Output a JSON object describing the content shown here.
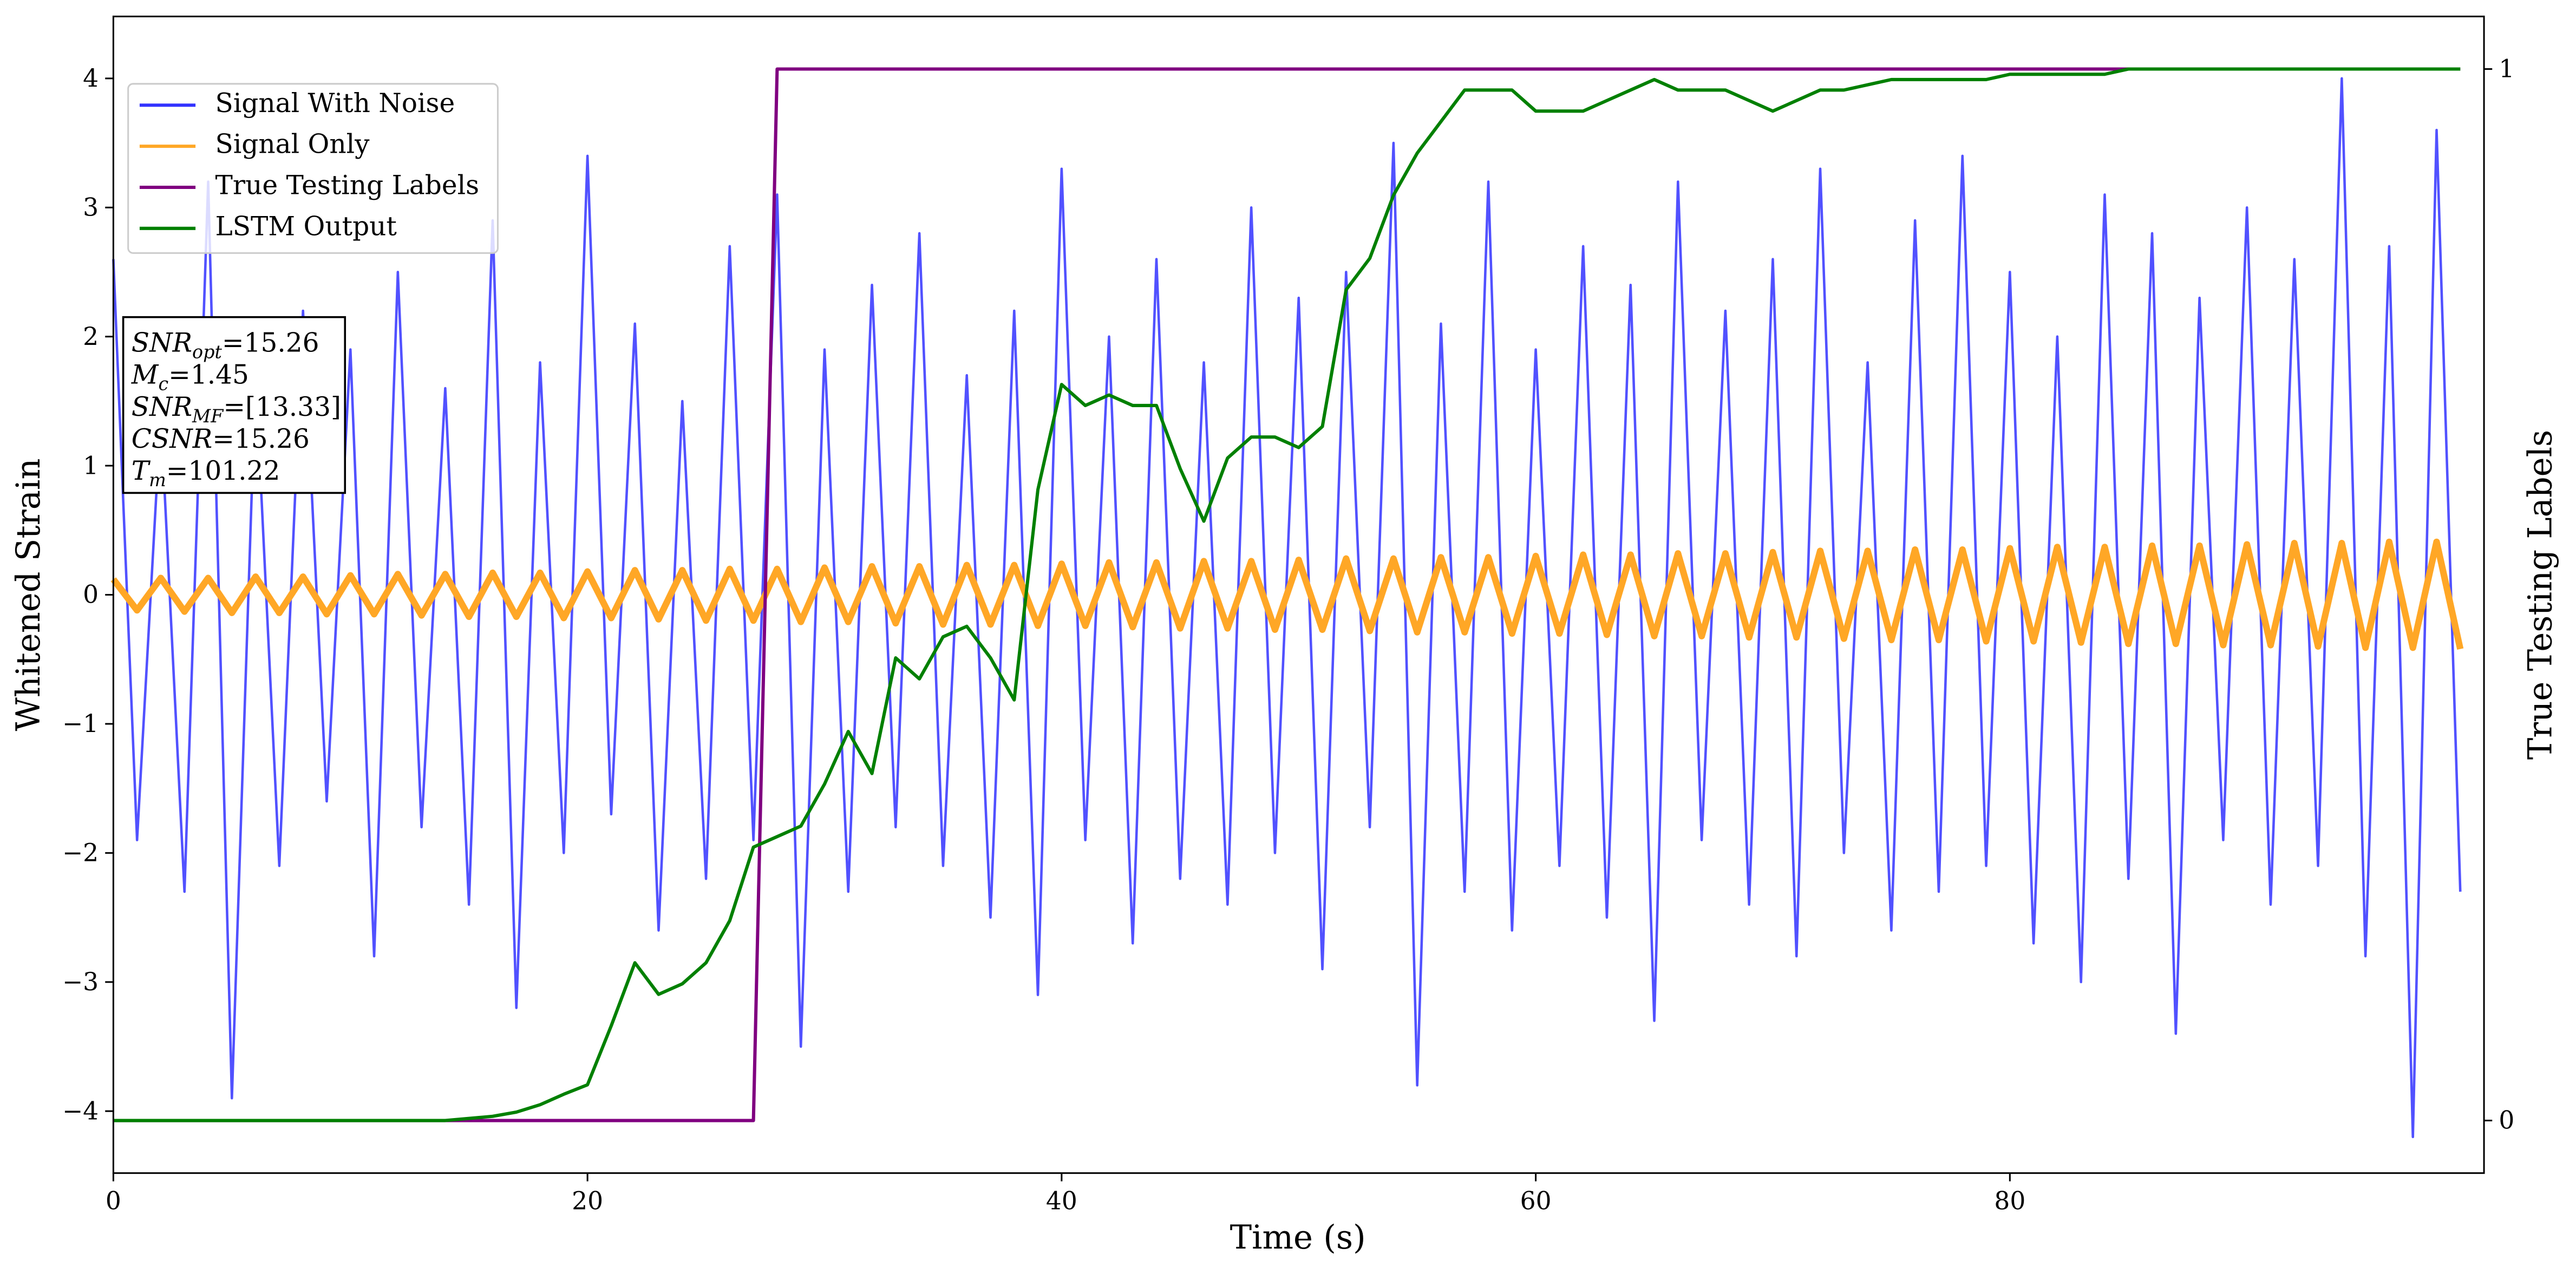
{
  "chart_data": {
    "type": "line",
    "xlabel": "Time (s)",
    "ylabel": "Whitened Strain",
    "y2label": "True Testing Labels",
    "xlim": [
      0,
      100
    ],
    "ylim": [
      -4.48,
      4.48
    ],
    "y2lim": [
      -0.05,
      1.05
    ],
    "xticks": [
      0,
      20,
      40,
      60,
      80
    ],
    "yticks": [
      {
        "value": -4,
        "label": "−4"
      },
      {
        "value": -3,
        "label": "−3"
      },
      {
        "value": -2,
        "label": "−2"
      },
      {
        "value": -1,
        "label": "−1"
      },
      0,
      1,
      2,
      3,
      4
    ],
    "y2ticks": [
      0,
      1
    ],
    "legend": "upper left",
    "x": [
      0,
      1,
      2,
      3,
      4,
      5,
      6,
      7,
      8,
      9,
      10,
      11,
      12,
      13,
      14,
      15,
      16,
      17,
      18,
      19,
      20,
      21,
      22,
      23,
      24,
      25,
      26,
      27,
      28,
      29,
      30,
      31,
      32,
      33,
      34,
      35,
      36,
      37,
      38,
      39,
      40,
      41,
      42,
      43,
      44,
      45,
      46,
      47,
      48,
      49,
      50,
      51,
      52,
      53,
      54,
      55,
      56,
      57,
      58,
      59,
      60,
      61,
      62,
      63,
      64,
      65,
      66,
      67,
      68,
      69,
      70,
      71,
      72,
      73,
      74,
      75,
      76,
      77,
      78,
      79,
      80,
      81,
      82,
      83,
      84,
      85,
      86,
      87,
      88,
      89,
      90,
      91,
      92,
      93,
      94,
      95,
      96,
      97,
      98,
      99
    ],
    "series": [
      {
        "name": "Signal With Noise",
        "color": "#3333ff",
        "values": [
          2.6,
          -1.9,
          1.4,
          -2.3,
          3.2,
          -3.9,
          1.7,
          -2.1,
          2.2,
          -1.6,
          1.9,
          -2.8,
          2.5,
          -1.8,
          1.6,
          -2.4,
          2.9,
          -3.2,
          1.8,
          -2.0,
          3.4,
          -1.7,
          2.1,
          -2.6,
          1.5,
          -2.2,
          2.7,
          -1.9,
          3.1,
          -3.5,
          1.9,
          -2.3,
          2.4,
          -1.8,
          2.8,
          -2.1,
          1.7,
          -2.5,
          2.2,
          -3.1,
          3.3,
          -1.9,
          2.0,
          -2.7,
          2.6,
          -2.2,
          1.8,
          -2.4,
          3.0,
          -2.0,
          2.3,
          -2.9,
          2.5,
          -1.8,
          3.5,
          -3.8,
          2.1,
          -2.3,
          3.2,
          -2.6,
          1.9,
          -2.1,
          2.7,
          -2.5,
          2.4,
          -3.3,
          3.2,
          -1.9,
          2.2,
          -2.4,
          2.6,
          -2.8,
          3.3,
          -2.0,
          1.8,
          -2.6,
          2.9,
          -2.3,
          3.4,
          -2.1,
          2.5,
          -2.7,
          2.0,
          -3.0,
          3.1,
          -2.2,
          2.8,
          -3.4,
          2.3,
          -1.9,
          3.0,
          -2.4,
          2.6,
          -2.1,
          4.0,
          -2.8,
          2.7,
          -4.2,
          3.6,
          -2.3
        ]
      },
      {
        "name": "Signal Only",
        "color": "#ffa726",
        "values": [
          0.12,
          -0.12,
          0.13,
          -0.13,
          0.13,
          -0.14,
          0.14,
          -0.14,
          0.14,
          -0.15,
          0.15,
          -0.15,
          0.16,
          -0.16,
          0.16,
          -0.17,
          0.17,
          -0.17,
          0.17,
          -0.18,
          0.18,
          -0.18,
          0.19,
          -0.19,
          0.19,
          -0.2,
          0.2,
          -0.2,
          0.2,
          -0.21,
          0.21,
          -0.21,
          0.22,
          -0.22,
          0.22,
          -0.23,
          0.23,
          -0.23,
          0.23,
          -0.24,
          0.24,
          -0.24,
          0.25,
          -0.25,
          0.25,
          -0.26,
          0.26,
          -0.26,
          0.26,
          -0.27,
          0.27,
          -0.27,
          0.28,
          -0.28,
          0.28,
          -0.29,
          0.29,
          -0.29,
          0.29,
          -0.3,
          0.3,
          -0.3,
          0.31,
          -0.31,
          0.31,
          -0.32,
          0.32,
          -0.32,
          0.32,
          -0.33,
          0.33,
          -0.33,
          0.34,
          -0.34,
          0.34,
          -0.35,
          0.35,
          -0.35,
          0.35,
          -0.36,
          0.36,
          -0.36,
          0.37,
          -0.37,
          0.37,
          -0.38,
          0.38,
          -0.38,
          0.38,
          -0.39,
          0.39,
          -0.39,
          0.4,
          -0.4,
          0.4,
          -0.41,
          0.41,
          -0.41,
          0.41,
          -0.42
        ]
      },
      {
        "name": "True Testing Labels",
        "color": "#800080",
        "axis": "y2",
        "values": [
          0,
          0,
          0,
          0,
          0,
          0,
          0,
          0,
          0,
          0,
          0,
          0,
          0,
          0,
          0,
          0,
          0,
          0,
          0,
          0,
          0,
          0,
          0,
          0,
          0,
          0,
          0,
          0,
          1,
          1,
          1,
          1,
          1,
          1,
          1,
          1,
          1,
          1,
          1,
          1,
          1,
          1,
          1,
          1,
          1,
          1,
          1,
          1,
          1,
          1,
          1,
          1,
          1,
          1,
          1,
          1,
          1,
          1,
          1,
          1,
          1,
          1,
          1,
          1,
          1,
          1,
          1,
          1,
          1,
          1,
          1,
          1,
          1,
          1,
          1,
          1,
          1,
          1,
          1,
          1,
          1,
          1,
          1,
          1,
          1,
          1,
          1,
          1,
          1,
          1,
          1,
          1,
          1,
          1,
          1,
          1,
          1,
          1,
          1,
          1
        ]
      },
      {
        "name": "LSTM Output",
        "color": "#008000",
        "axis": "y2",
        "values": [
          0,
          0,
          0,
          0,
          0,
          0,
          0,
          0,
          0,
          0,
          0,
          0,
          0,
          0,
          0,
          0.002,
          0.004,
          0.008,
          0.015,
          0.025,
          0.034,
          0.09,
          0.15,
          0.12,
          0.13,
          0.15,
          0.19,
          0.26,
          0.27,
          0.28,
          0.32,
          0.37,
          0.33,
          0.44,
          0.42,
          0.46,
          0.47,
          0.44,
          0.4,
          0.6,
          0.7,
          0.68,
          0.69,
          0.68,
          0.68,
          0.62,
          0.57,
          0.63,
          0.65,
          0.65,
          0.64,
          0.66,
          0.79,
          0.82,
          0.88,
          0.92,
          0.95,
          0.98,
          0.98,
          0.98,
          0.96,
          0.96,
          0.96,
          0.97,
          0.98,
          0.99,
          0.98,
          0.98,
          0.98,
          0.97,
          0.96,
          0.97,
          0.98,
          0.98,
          0.985,
          0.99,
          0.99,
          0.99,
          0.99,
          0.99,
          0.995,
          0.995,
          0.995,
          0.995,
          0.995,
          1.0,
          1.0,
          1.0,
          1.0,
          1.0,
          1.0,
          1.0,
          1.0,
          1.0,
          1.0,
          1.0,
          1.0,
          1.0,
          1.0,
          1.0
        ]
      }
    ],
    "annotation": [
      {
        "var": "SNR",
        "sub": "opt",
        "text": "=15.26"
      },
      {
        "var": "M",
        "sub": "c",
        "text": "=1.45"
      },
      {
        "var": "SNR",
        "sub": "MF",
        "text": "=[13.33]"
      },
      {
        "var": "CSNR",
        "text": "=15.26"
      },
      {
        "var": "T",
        "sub": "m",
        "text": "=101.22"
      }
    ]
  }
}
